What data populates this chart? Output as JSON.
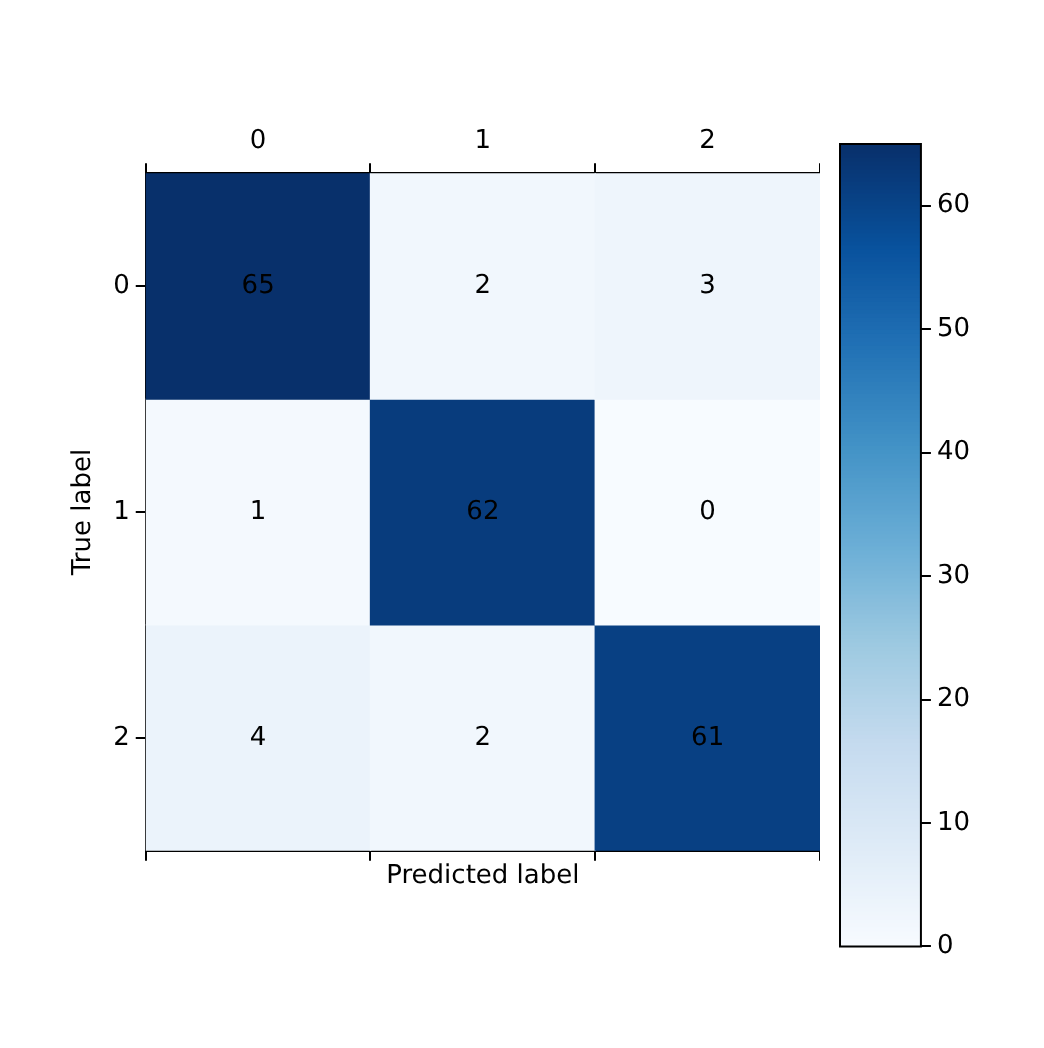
{
  "chart_data": {
    "type": "heatmap",
    "xlabel": "Predicted label",
    "ylabel": "True label",
    "categories": [
      "0",
      "1",
      "2"
    ],
    "y_categories": [
      "0",
      "1",
      "2"
    ],
    "cells": [
      [
        65,
        2,
        3
      ],
      [
        1,
        62,
        0
      ],
      [
        4,
        2,
        61
      ]
    ],
    "clim": [
      0,
      65
    ],
    "cticks": [
      0,
      10,
      20,
      30,
      40,
      50,
      60
    ],
    "data_labels": true
  }
}
